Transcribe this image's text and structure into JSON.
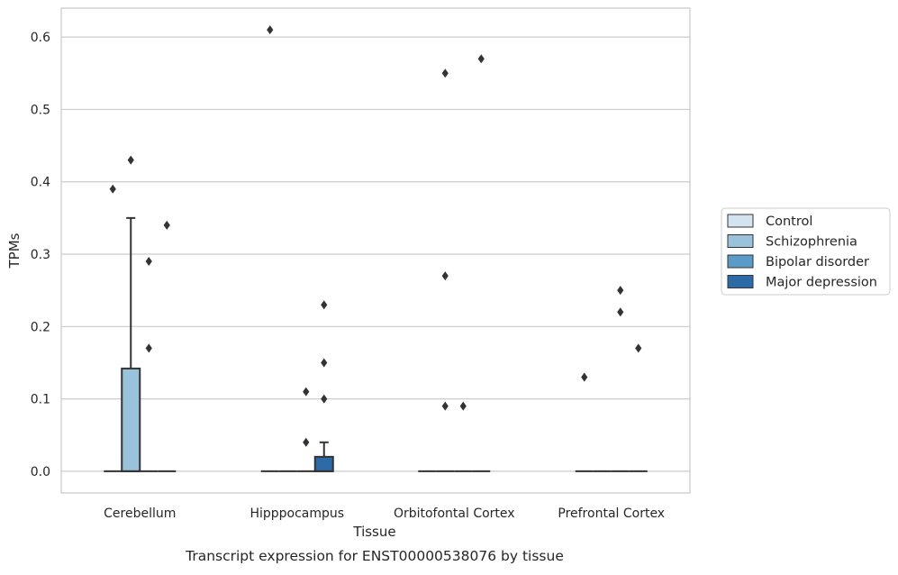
{
  "caption": "Transcript expression for ENST00000538076 by tissue",
  "chart_data": {
    "type": "box",
    "xlabel": "Tissue",
    "ylabel": "TPMs",
    "ylim": [
      -0.03,
      0.64
    ],
    "yticks": [
      0.0,
      0.1,
      0.2,
      0.3,
      0.4,
      0.5,
      0.6
    ],
    "ytick_labels": [
      "0.0",
      "0.1",
      "0.2",
      "0.3",
      "0.4",
      "0.5",
      "0.6"
    ],
    "grid": "horizontal",
    "legend_position": "right",
    "categories": [
      "Cerebellum",
      "Hipppocampus",
      "Orbitofontal Cortex",
      "Prefrontal Cortex"
    ],
    "series": [
      {
        "name": "Control",
        "color": "#d4e3f0",
        "boxes": [
          {
            "q1": 0.0,
            "median": 0.0,
            "q3": 0.0,
            "whisker_low": 0.0,
            "whisker_high": 0.0,
            "outliers": [
              0.39
            ]
          },
          {
            "q1": 0.0,
            "median": 0.0,
            "q3": 0.0,
            "whisker_low": 0.0,
            "whisker_high": 0.0,
            "outliers": [
              0.61
            ]
          },
          {
            "q1": 0.0,
            "median": 0.0,
            "q3": 0.0,
            "whisker_low": 0.0,
            "whisker_high": 0.0,
            "outliers": []
          },
          {
            "q1": 0.0,
            "median": 0.0,
            "q3": 0.0,
            "whisker_low": 0.0,
            "whisker_high": 0.0,
            "outliers": [
              0.13
            ]
          }
        ]
      },
      {
        "name": "Schizophrenia",
        "color": "#9bc2db",
        "boxes": [
          {
            "q1": 0.0,
            "median": 0.0,
            "q3": 0.142,
            "whisker_low": 0.0,
            "whisker_high": 0.35,
            "outliers": [
              0.43
            ]
          },
          {
            "q1": 0.0,
            "median": 0.0,
            "q3": 0.0,
            "whisker_low": 0.0,
            "whisker_high": 0.0,
            "outliers": []
          },
          {
            "q1": 0.0,
            "median": 0.0,
            "q3": 0.0,
            "whisker_low": 0.0,
            "whisker_high": 0.0,
            "outliers": [
              0.55,
              0.27,
              0.09
            ]
          },
          {
            "q1": 0.0,
            "median": 0.0,
            "q3": 0.0,
            "whisker_low": 0.0,
            "whisker_high": 0.0,
            "outliers": []
          }
        ]
      },
      {
        "name": "Bipolar disorder",
        "color": "#5a9bc7",
        "boxes": [
          {
            "q1": 0.0,
            "median": 0.0,
            "q3": 0.0,
            "whisker_low": 0.0,
            "whisker_high": 0.0,
            "outliers": [
              0.29,
              0.17
            ]
          },
          {
            "q1": 0.0,
            "median": 0.0,
            "q3": 0.0,
            "whisker_low": 0.0,
            "whisker_high": 0.0,
            "outliers": [
              0.11,
              0.04
            ]
          },
          {
            "q1": 0.0,
            "median": 0.0,
            "q3": 0.0,
            "whisker_low": 0.0,
            "whisker_high": 0.0,
            "outliers": [
              0.09
            ]
          },
          {
            "q1": 0.0,
            "median": 0.0,
            "q3": 0.0,
            "whisker_low": 0.0,
            "whisker_high": 0.0,
            "outliers": [
              0.25,
              0.22
            ]
          }
        ]
      },
      {
        "name": "Major depression",
        "color": "#2d6aa8",
        "boxes": [
          {
            "q1": 0.0,
            "median": 0.0,
            "q3": 0.0,
            "whisker_low": 0.0,
            "whisker_high": 0.0,
            "outliers": [
              0.34
            ]
          },
          {
            "q1": 0.0,
            "median": 0.0,
            "q3": 0.02,
            "whisker_low": 0.0,
            "whisker_high": 0.04,
            "outliers": [
              0.23,
              0.15,
              0.1
            ]
          },
          {
            "q1": 0.0,
            "median": 0.0,
            "q3": 0.0,
            "whisker_low": 0.0,
            "whisker_high": 0.0,
            "outliers": [
              0.57
            ]
          },
          {
            "q1": 0.0,
            "median": 0.0,
            "q3": 0.0,
            "whisker_low": 0.0,
            "whisker_high": 0.0,
            "outliers": [
              0.17
            ]
          }
        ]
      }
    ]
  }
}
